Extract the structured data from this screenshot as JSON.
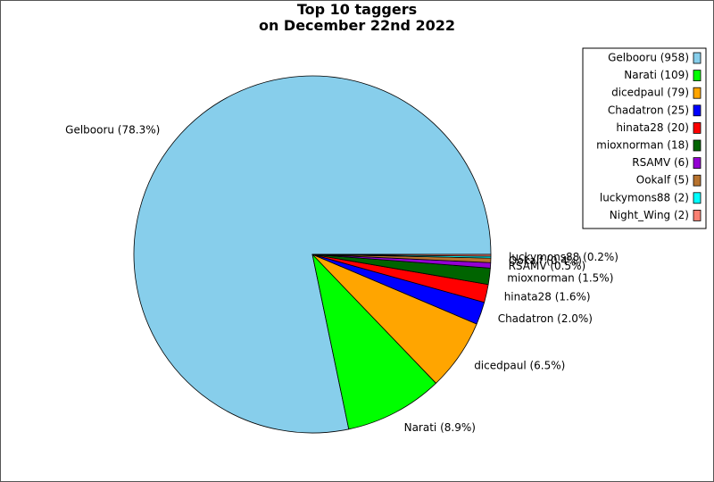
{
  "title_line1": "Top 10 taggers",
  "title_line2": "on December 22nd 2022",
  "chart_data": {
    "type": "pie",
    "title": "Top 10 taggers on December 22nd 2022",
    "start_angle_deg": 0,
    "direction": "counterclockwise",
    "legend_position": "top-right",
    "slices": [
      {
        "name": "Gelbooru",
        "value": 958,
        "legend": "Gelbooru (958)",
        "label": "Gelbooru (78.3%)",
        "color": "#87ceeb"
      },
      {
        "name": "Narati",
        "value": 109,
        "legend": "Narati (109)",
        "label": "Narati (8.9%)",
        "color": "#00ff00"
      },
      {
        "name": "dicedpaul",
        "value": 79,
        "legend": "dicedpaul (79)",
        "label": "dicedpaul (6.5%)",
        "color": "#ffa500"
      },
      {
        "name": "Chadatron",
        "value": 25,
        "legend": "Chadatron (25)",
        "label": "Chadatron (2.0%)",
        "color": "#0000ff"
      },
      {
        "name": "hinata28",
        "value": 20,
        "legend": "hinata28 (20)",
        "label": "hinata28 (1.6%)",
        "color": "#ff0000"
      },
      {
        "name": "mioxnorman",
        "value": 18,
        "legend": "mioxnorman (18)",
        "label": "mioxnorman (1.5%)",
        "color": "#006400"
      },
      {
        "name": "RSAMV",
        "value": 6,
        "legend": "RSAMV (6)",
        "label": "RSAMV (0.5%)",
        "color": "#9400d3"
      },
      {
        "name": "Ookalf",
        "value": 5,
        "legend": "Ookalf (5)",
        "label": "Ookalf (0.4%)",
        "color": "#b8732e"
      },
      {
        "name": "luckymons88",
        "value": 2,
        "legend": "luckymons88 (2)",
        "label": "luckymons88 (0.2%)",
        "color": "#00ffff"
      },
      {
        "name": "Night_Wing",
        "value": 2,
        "legend": "Night_Wing (2)",
        "label": "",
        "color": "#fa8072"
      }
    ]
  }
}
